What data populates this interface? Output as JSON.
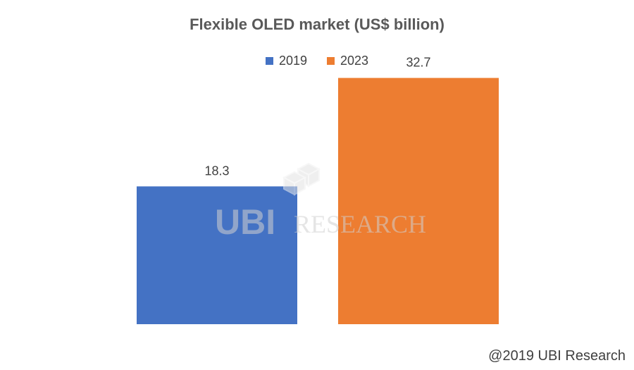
{
  "chart_data": {
    "type": "bar",
    "title": "Flexible OLED market (US$ billion)",
    "categories": [
      "2019",
      "2023"
    ],
    "values": [
      18.3,
      32.7
    ],
    "ylim": [
      0,
      35
    ],
    "colors": [
      "#4472C4",
      "#ED7D31"
    ],
    "legend": {
      "position": "top",
      "entries": [
        "2019",
        "2023"
      ]
    },
    "grid": false
  },
  "watermark": {
    "text": "RESEARCH",
    "logo": "UBI"
  },
  "footer": {
    "copyright": "@2019 UBI Research"
  }
}
